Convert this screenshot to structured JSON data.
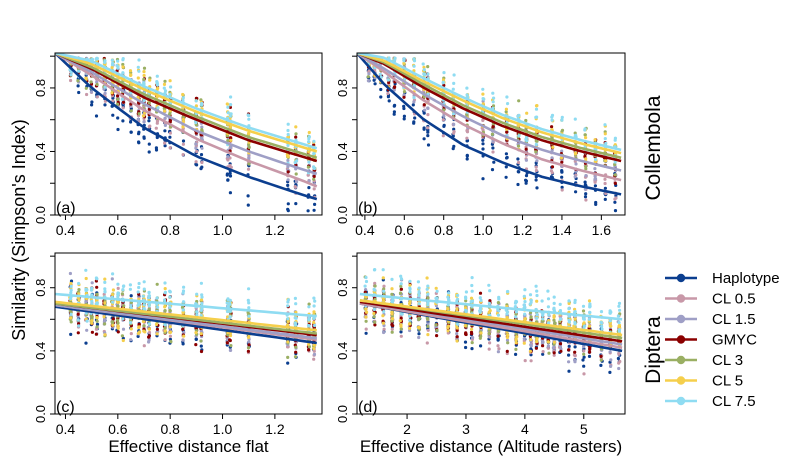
{
  "figure": {
    "ylabel": "Similarity (Simpson's Index)",
    "row_labels": [
      "Collembola",
      "Diptera"
    ]
  },
  "legend": {
    "position": "right",
    "entries": [
      {
        "name": "Haplotype",
        "color": "#0b3e8f"
      },
      {
        "name": "CL 0.5",
        "color": "#c898a8"
      },
      {
        "name": "CL 1.5",
        "color": "#9f9fc6"
      },
      {
        "name": "GMYC",
        "color": "#8b0000"
      },
      {
        "name": "CL 3",
        "color": "#9aaf63"
      },
      {
        "name": "CL 5",
        "color": "#f5cf4c"
      },
      {
        "name": "CL 7.5",
        "color": "#8fdcf2"
      }
    ]
  },
  "chart_data": [
    {
      "type": "scatter",
      "panel": "(a)",
      "group": "Collembola",
      "xlabel": "",
      "xlim": [
        0.36,
        1.38
      ],
      "ylim": [
        0,
        1.02
      ],
      "xticks": [
        0.4,
        0.6,
        0.8,
        1.0,
        1.2
      ],
      "xtick_labels": [
        "0.4",
        "0.6",
        "0.8",
        "1.0",
        "1.2"
      ],
      "yticks": [
        0.0,
        0.4,
        0.8
      ],
      "ytick_labels": [
        "0.0",
        "0.4",
        "0.8"
      ],
      "ytick_minor": [
        0.2,
        0.6,
        1.0
      ],
      "x_clusters": [
        0.42,
        0.45,
        0.48,
        0.5,
        0.52,
        0.55,
        0.58,
        0.6,
        0.62,
        0.65,
        0.68,
        0.7,
        0.72,
        0.75,
        0.78,
        0.8,
        0.85,
        0.9,
        0.92,
        1.02,
        1.03,
        1.1,
        1.25,
        1.28,
        1.33,
        1.35
      ],
      "fit_curves": [
        {
          "series": "Haplotype",
          "x": [
            0.36,
            0.5,
            0.7,
            0.9,
            1.1,
            1.3,
            1.36
          ],
          "y": [
            1.02,
            0.8,
            0.55,
            0.37,
            0.24,
            0.13,
            0.1
          ]
        },
        {
          "series": "CL 0.5",
          "x": [
            0.36,
            0.5,
            0.7,
            0.9,
            1.1,
            1.3,
            1.36
          ],
          "y": [
            1.02,
            0.88,
            0.66,
            0.48,
            0.34,
            0.22,
            0.18
          ]
        },
        {
          "series": "CL 1.5",
          "x": [
            0.36,
            0.5,
            0.7,
            0.9,
            1.1,
            1.3,
            1.36
          ],
          "y": [
            1.02,
            0.9,
            0.7,
            0.53,
            0.4,
            0.29,
            0.26
          ]
        },
        {
          "series": "GMYC",
          "x": [
            0.36,
            0.5,
            0.7,
            0.9,
            1.1,
            1.3,
            1.36
          ],
          "y": [
            1.02,
            0.92,
            0.74,
            0.6,
            0.47,
            0.37,
            0.34
          ]
        },
        {
          "series": "CL 3",
          "x": [
            0.36,
            0.5,
            0.7,
            0.9,
            1.1,
            1.3,
            1.36
          ],
          "y": [
            1.02,
            0.93,
            0.76,
            0.62,
            0.49,
            0.39,
            0.36
          ]
        },
        {
          "series": "CL 5",
          "x": [
            0.36,
            0.5,
            0.7,
            0.9,
            1.1,
            1.3,
            1.36
          ],
          "y": [
            1.02,
            0.95,
            0.79,
            0.65,
            0.53,
            0.43,
            0.4
          ]
        },
        {
          "series": "CL 7.5",
          "x": [
            0.36,
            0.5,
            0.7,
            0.9,
            1.1,
            1.3,
            1.36
          ],
          "y": [
            1.02,
            0.97,
            0.81,
            0.67,
            0.55,
            0.45,
            0.42
          ]
        }
      ]
    },
    {
      "type": "scatter",
      "panel": "(b)",
      "group": "Collembola",
      "xlabel": "",
      "xlim": [
        0.36,
        1.72
      ],
      "ylim": [
        0,
        1.02
      ],
      "xticks": [
        0.4,
        0.6,
        0.8,
        1.0,
        1.2,
        1.4,
        1.6
      ],
      "xtick_labels": [
        "0.4",
        "0.6",
        "0.8",
        "1.0",
        "1.2",
        "1.4",
        "1.6"
      ],
      "yticks": [
        0.0,
        0.4,
        0.8
      ],
      "ytick_labels": [
        "0.0",
        "0.4",
        "0.8"
      ],
      "ytick_minor": [
        0.2,
        0.6,
        1.0
      ],
      "x_clusters": [
        0.42,
        0.45,
        0.48,
        0.52,
        0.55,
        0.6,
        0.65,
        0.7,
        0.72,
        0.8,
        0.85,
        0.92,
        1.0,
        1.05,
        1.12,
        1.18,
        1.22,
        1.27,
        1.35,
        1.4,
        1.47,
        1.52,
        1.57,
        1.62,
        1.67
      ],
      "fit_curves": [
        {
          "series": "Haplotype",
          "x": [
            0.36,
            0.5,
            0.7,
            0.9,
            1.1,
            1.3,
            1.5,
            1.7
          ],
          "y": [
            1.02,
            0.82,
            0.6,
            0.44,
            0.33,
            0.24,
            0.18,
            0.13
          ]
        },
        {
          "series": "CL 0.5",
          "x": [
            0.36,
            0.5,
            0.7,
            0.9,
            1.1,
            1.3,
            1.5,
            1.7
          ],
          "y": [
            1.02,
            0.9,
            0.72,
            0.57,
            0.45,
            0.35,
            0.28,
            0.22
          ]
        },
        {
          "series": "CL 1.5",
          "x": [
            0.36,
            0.5,
            0.7,
            0.9,
            1.1,
            1.3,
            1.5,
            1.7
          ],
          "y": [
            1.02,
            0.92,
            0.76,
            0.62,
            0.5,
            0.41,
            0.34,
            0.28
          ]
        },
        {
          "series": "GMYC",
          "x": [
            0.36,
            0.5,
            0.7,
            0.9,
            1.1,
            1.3,
            1.5,
            1.7
          ],
          "y": [
            1.02,
            0.95,
            0.8,
            0.67,
            0.56,
            0.47,
            0.4,
            0.34
          ]
        },
        {
          "series": "CL 3",
          "x": [
            0.36,
            0.5,
            0.7,
            0.9,
            1.1,
            1.3,
            1.5,
            1.7
          ],
          "y": [
            1.02,
            0.96,
            0.82,
            0.69,
            0.58,
            0.49,
            0.42,
            0.36
          ]
        },
        {
          "series": "CL 5",
          "x": [
            0.36,
            0.5,
            0.7,
            0.9,
            1.1,
            1.3,
            1.5,
            1.7
          ],
          "y": [
            1.02,
            0.97,
            0.84,
            0.72,
            0.61,
            0.52,
            0.45,
            0.39
          ]
        },
        {
          "series": "CL 7.5",
          "x": [
            0.36,
            0.5,
            0.7,
            0.9,
            1.1,
            1.3,
            1.5,
            1.7
          ],
          "y": [
            1.02,
            0.99,
            0.86,
            0.74,
            0.63,
            0.54,
            0.47,
            0.41
          ]
        }
      ]
    },
    {
      "type": "scatter",
      "panel": "(c)",
      "group": "Diptera",
      "xlabel": "Effective distance flat",
      "xlim": [
        0.36,
        1.38
      ],
      "ylim": [
        0,
        1.02
      ],
      "xticks": [
        0.4,
        0.6,
        0.8,
        1.0,
        1.2
      ],
      "xtick_labels": [
        "0.4",
        "0.6",
        "0.8",
        "1.0",
        "1.2"
      ],
      "yticks": [
        0.0,
        0.4,
        0.8
      ],
      "ytick_labels": [
        "0.0",
        "0.4",
        "0.8"
      ],
      "ytick_minor": [
        0.2,
        0.6,
        1.0
      ],
      "x_clusters": [
        0.42,
        0.45,
        0.48,
        0.5,
        0.52,
        0.55,
        0.58,
        0.6,
        0.62,
        0.65,
        0.68,
        0.7,
        0.72,
        0.75,
        0.78,
        0.8,
        0.85,
        0.9,
        0.92,
        1.02,
        1.03,
        1.1,
        1.25,
        1.28,
        1.33,
        1.35
      ],
      "fit_curves": [
        {
          "series": "Haplotype",
          "x": [
            0.36,
            1.36
          ],
          "y": [
            0.68,
            0.45
          ]
        },
        {
          "series": "CL 0.5",
          "x": [
            0.36,
            1.36
          ],
          "y": [
            0.69,
            0.47
          ]
        },
        {
          "series": "CL 1.5",
          "x": [
            0.36,
            1.36
          ],
          "y": [
            0.69,
            0.48
          ]
        },
        {
          "series": "GMYC",
          "x": [
            0.36,
            1.36
          ],
          "y": [
            0.7,
            0.5
          ]
        },
        {
          "series": "CL 3",
          "x": [
            0.36,
            1.36
          ],
          "y": [
            0.7,
            0.51
          ]
        },
        {
          "series": "CL 5",
          "x": [
            0.36,
            1.36
          ],
          "y": [
            0.71,
            0.53
          ]
        },
        {
          "series": "CL 7.5",
          "x": [
            0.36,
            1.36
          ],
          "y": [
            0.76,
            0.62
          ]
        }
      ]
    },
    {
      "type": "scatter",
      "panel": "(d)",
      "group": "Diptera",
      "xlabel": "Effective distance (Altitude rasters)",
      "xlim": [
        1.15,
        5.7
      ],
      "ylim": [
        0,
        1.02
      ],
      "xticks": [
        2,
        3,
        4,
        5
      ],
      "xtick_labels": [
        "2",
        "3",
        "4",
        "5"
      ],
      "yticks": [
        0.0,
        0.4,
        0.8
      ],
      "ytick_labels": [
        "0.0",
        "0.4",
        "0.8"
      ],
      "ytick_minor": [
        0.2,
        0.6,
        1.0
      ],
      "x_clusters": [
        1.3,
        1.45,
        1.6,
        1.75,
        1.9,
        2.05,
        2.2,
        2.35,
        2.5,
        2.7,
        2.85,
        3.0,
        3.1,
        3.25,
        3.4,
        3.55,
        3.7,
        3.85,
        4.0,
        4.1,
        4.2,
        4.3,
        4.4,
        4.5,
        4.6,
        4.75,
        4.85,
        5.0,
        5.1,
        5.3,
        5.45,
        5.6
      ],
      "fit_curves": [
        {
          "series": "Haplotype",
          "x": [
            1.2,
            5.65
          ],
          "y": [
            0.7,
            0.4
          ]
        },
        {
          "series": "CL 0.5",
          "x": [
            1.2,
            5.65
          ],
          "y": [
            0.7,
            0.42
          ]
        },
        {
          "series": "CL 1.5",
          "x": [
            1.2,
            5.65
          ],
          "y": [
            0.71,
            0.44
          ]
        },
        {
          "series": "GMYC",
          "x": [
            1.2,
            5.65
          ],
          "y": [
            0.71,
            0.46
          ]
        },
        {
          "series": "CL 3",
          "x": [
            1.2,
            5.65
          ],
          "y": [
            0.72,
            0.48
          ]
        },
        {
          "series": "CL 5",
          "x": [
            1.2,
            5.65
          ],
          "y": [
            0.72,
            0.5
          ]
        },
        {
          "series": "CL 7.5",
          "x": [
            1.2,
            5.65
          ],
          "y": [
            0.76,
            0.6
          ]
        }
      ]
    }
  ]
}
